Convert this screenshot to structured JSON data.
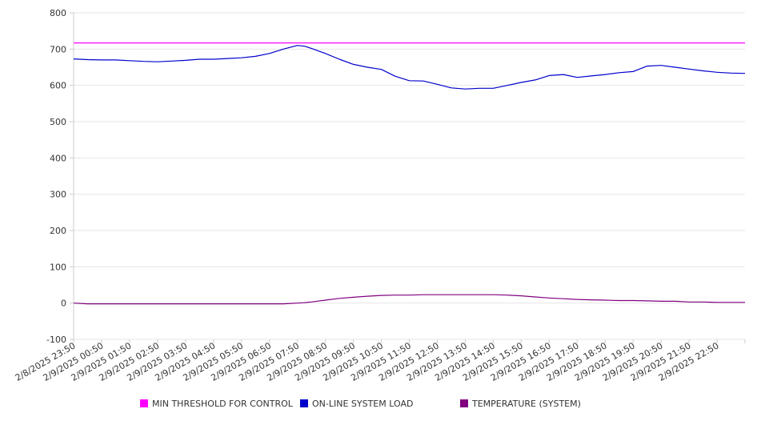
{
  "chart_data": {
    "type": "line",
    "ylim": [
      -100,
      800
    ],
    "yticks": [
      -100,
      0,
      100,
      200,
      300,
      400,
      500,
      600,
      700,
      800
    ],
    "grid": true,
    "legend_placement": "bottom",
    "x_tick_labels": [
      "2/8/2025 23:50",
      "2/9/2025 00:50",
      "2/9/2025 01:50",
      "2/9/2025 02:50",
      "2/9/2025 03:50",
      "2/9/2025 04:50",
      "2/9/2025 05:50",
      "2/9/2025 06:50",
      "2/9/2025 07:50",
      "2/9/2025 08:50",
      "2/9/2025 09:50",
      "2/9/2025 10:50",
      "2/9/2025 11:50",
      "2/9/2025 12:50",
      "2/9/2025 13:50",
      "2/9/2025 14:50",
      "2/9/2025 15:50",
      "2/9/2025 16:50",
      "2/9/2025 17:50",
      "2/9/2025 18:50",
      "2/9/2025 19:50",
      "2/9/2025 20:50",
      "2/9/2025 21:50",
      "2/9/2025 22:50"
    ],
    "x_hours": [
      0,
      0.5,
      1,
      1.5,
      2,
      2.5,
      3,
      3.5,
      4,
      4.5,
      5,
      5.5,
      6,
      6.5,
      7,
      7.5,
      7.75,
      8,
      8.25,
      8.5,
      9,
      9.5,
      10,
      10.5,
      11,
      11.5,
      12,
      12.5,
      13,
      13.5,
      14,
      14.5,
      15,
      15.5,
      16,
      16.5,
      17,
      17.5,
      18,
      18.5,
      19,
      19.5,
      20,
      20.5,
      21,
      21.5,
      22,
      22.5,
      23,
      23.5,
      24
    ],
    "series": [
      {
        "name": "MIN THRESHOLD FOR CONTROL",
        "color": "#ff00ff",
        "values": [
          717,
          717,
          717,
          717,
          717,
          717,
          717,
          717,
          717,
          717,
          717,
          717,
          717,
          717,
          717,
          717,
          717,
          717,
          717,
          717,
          717,
          717,
          717,
          717,
          717,
          717,
          717,
          717,
          717,
          717,
          717,
          717,
          717,
          717,
          717,
          717,
          717,
          717,
          717,
          717,
          717,
          717,
          717,
          717,
          717,
          717,
          717,
          717,
          717,
          717,
          717
        ]
      },
      {
        "name": "ON-LINE SYSTEM LOAD",
        "color": "#0000cc",
        "values": [
          673,
          671,
          670,
          670,
          668,
          666,
          665,
          667,
          669,
          672,
          672,
          674,
          676,
          680,
          688,
          700,
          705,
          710,
          708,
          702,
          688,
          672,
          658,
          650,
          644,
          625,
          613,
          612,
          603,
          593,
          590,
          592,
          592,
          600,
          608,
          615,
          627,
          630,
          622,
          626,
          630,
          635,
          638,
          653,
          655,
          650,
          645,
          640,
          636,
          634,
          633
        ]
      },
      {
        "name": "TEMPERATURE (SYSTEM)",
        "color": "#800080",
        "values": [
          0,
          -2,
          -2,
          -2,
          -2,
          -2,
          -2,
          -2,
          -2,
          -2,
          -2,
          -2,
          -2,
          -2,
          -2,
          -2,
          -1,
          0,
          1,
          3,
          8,
          13,
          16,
          19,
          21,
          22,
          22,
          23,
          23,
          23,
          23,
          23,
          23,
          22,
          20,
          17,
          14,
          12,
          10,
          9,
          8,
          7,
          7,
          6,
          5,
          5,
          3,
          3,
          2,
          2,
          2
        ]
      }
    ]
  }
}
